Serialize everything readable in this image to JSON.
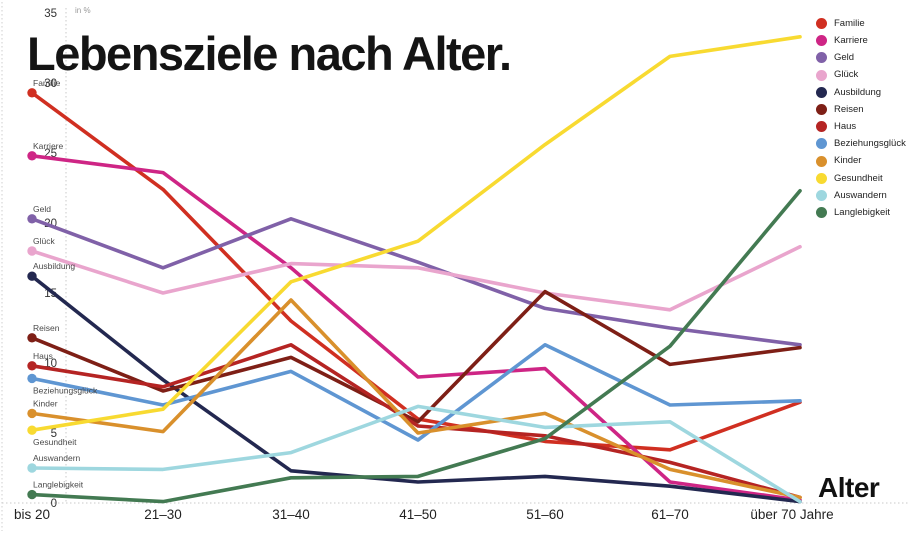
{
  "title": "Lebensziele nach Alter.",
  "y_axis_unit": "in %",
  "x_axis_label": "Alter",
  "y_ticks": [
    0,
    5,
    10,
    15,
    20,
    25,
    30,
    35
  ],
  "chart_data": {
    "type": "line",
    "title": "Lebensziele nach Alter.",
    "xlabel": "Alter",
    "ylabel": "in %",
    "ylim": [
      0,
      35
    ],
    "grid": false,
    "legend_position": "right",
    "categories": [
      "bis 20",
      "21–30",
      "31–40",
      "41–50",
      "51–60",
      "61–70",
      "über 70 Jahre"
    ],
    "series": [
      {
        "name": "Familie",
        "color": "#d02f21",
        "values": [
          29.3,
          22.4,
          13.0,
          6.0,
          4.4,
          3.8,
          7.2
        ]
      },
      {
        "name": "Karriere",
        "color": "#ce2585",
        "values": [
          24.8,
          23.6,
          16.8,
          9.0,
          9.6,
          1.5,
          0.2
        ]
      },
      {
        "name": "Geld",
        "color": "#8061a8",
        "values": [
          20.3,
          16.8,
          20.3,
          17.2,
          13.9,
          12.5,
          11.3
        ]
      },
      {
        "name": "Glück",
        "color": "#e9a5cd",
        "values": [
          18.0,
          15.0,
          17.1,
          16.8,
          15.0,
          13.8,
          18.3
        ]
      },
      {
        "name": "Ausbildung",
        "color": "#232850",
        "values": [
          16.2,
          8.8,
          2.3,
          1.5,
          1.9,
          1.2,
          0.1
        ]
      },
      {
        "name": "Reisen",
        "color": "#7e1f16",
        "values": [
          11.8,
          8.0,
          10.4,
          5.8,
          15.1,
          9.9,
          11.1
        ]
      },
      {
        "name": "Haus",
        "color": "#b52423",
        "values": [
          9.8,
          8.3,
          11.3,
          5.5,
          4.8,
          2.9,
          0.4
        ]
      },
      {
        "name": "Beziehungsglück",
        "color": "#5f96d2",
        "values": [
          8.9,
          7.0,
          9.4,
          4.5,
          11.3,
          7.0,
          7.3
        ]
      },
      {
        "name": "Kinder",
        "color": "#d9902c",
        "values": [
          6.4,
          5.1,
          14.5,
          5.0,
          6.4,
          2.4,
          0.4
        ]
      },
      {
        "name": "Gesundheit",
        "color": "#f8da31",
        "values": [
          5.2,
          6.7,
          15.8,
          18.7,
          25.6,
          31.9,
          33.3
        ]
      },
      {
        "name": "Auswandern",
        "color": "#9ed7df",
        "values": [
          2.5,
          2.4,
          3.6,
          6.9,
          5.4,
          5.8,
          0.1
        ]
      },
      {
        "name": "Langlebigkeit",
        "color": "#437a52",
        "values": [
          0.6,
          0.1,
          1.8,
          1.9,
          4.6,
          11.2,
          22.3
        ]
      }
    ],
    "series_labels_below_start": [
      "Beziehungsglück",
      "Gesundheit"
    ]
  }
}
